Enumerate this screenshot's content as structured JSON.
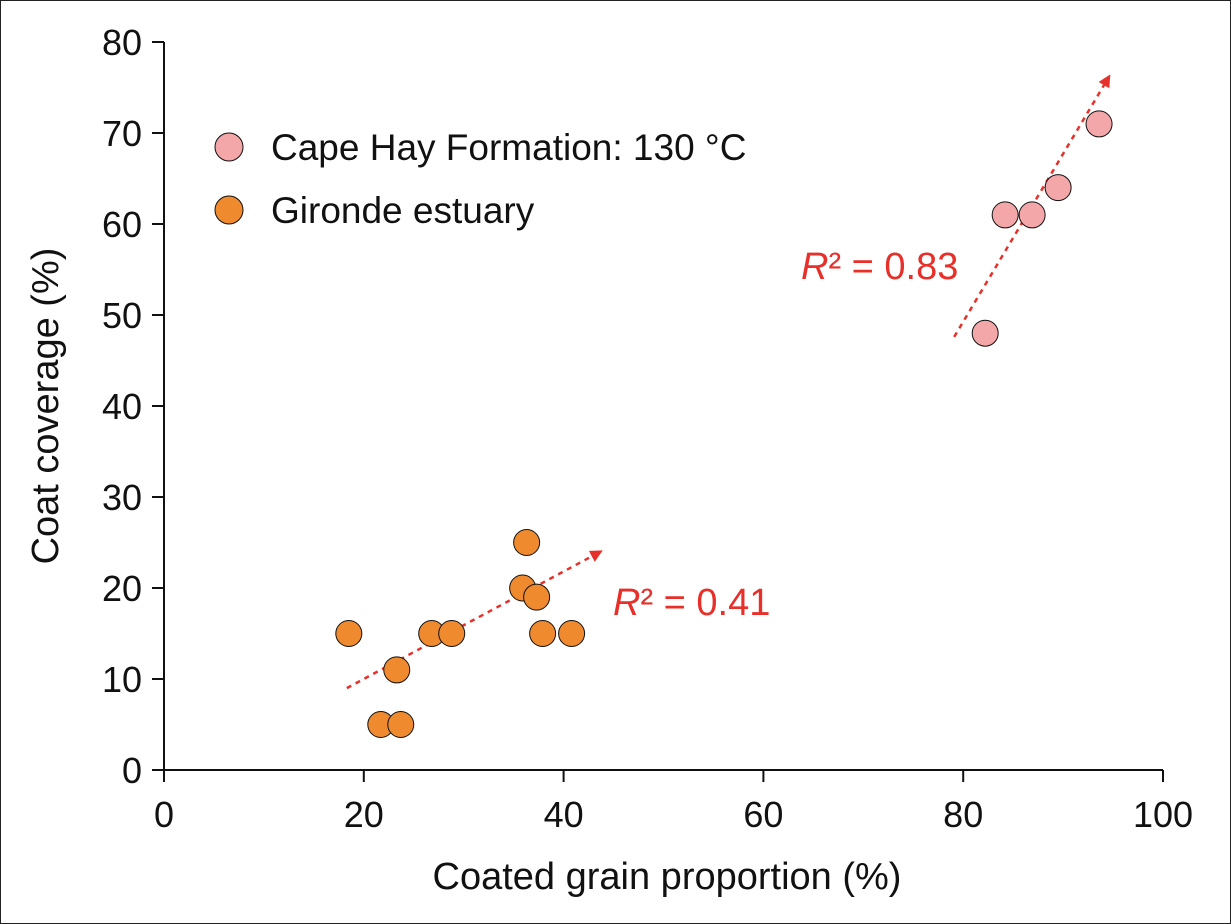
{
  "chart_data": {
    "type": "scatter",
    "title": "",
    "xlabel": "Coated grain proportion (%)",
    "ylabel": "Coat coverage (%)",
    "xlim": [
      0,
      100
    ],
    "ylim": [
      0,
      80
    ],
    "xticks": [
      0,
      20,
      40,
      60,
      80,
      100
    ],
    "yticks": [
      0,
      10,
      20,
      30,
      40,
      50,
      60,
      70,
      80
    ],
    "grid": false,
    "legend_position": "top-left",
    "series": [
      {
        "name": "Cape Hay Formation: 130 °C",
        "color": "#f4a7a9",
        "points": [
          [
            82.2,
            48
          ],
          [
            84.2,
            61
          ],
          [
            86.9,
            61
          ],
          [
            89.5,
            64
          ],
          [
            93.6,
            71
          ]
        ],
        "trend": {
          "from": [
            79.1,
            47.6
          ],
          "to": [
            94.6,
            76.2
          ],
          "label": "R² = 0.83",
          "r2_prefix": "R",
          "r2_rest": "² = 0.83"
        }
      },
      {
        "name": "Gironde estuary",
        "color": "#f08a2e",
        "points": [
          [
            18.5,
            15
          ],
          [
            21.7,
            5
          ],
          [
            23.7,
            5
          ],
          [
            23.3,
            11
          ],
          [
            26.8,
            15
          ],
          [
            28.8,
            15
          ],
          [
            36.3,
            25
          ],
          [
            35.9,
            20
          ],
          [
            37.3,
            19
          ],
          [
            37.9,
            15
          ],
          [
            40.8,
            15
          ]
        ],
        "trend": {
          "from": [
            18.3,
            9
          ],
          "to": [
            43.7,
            24
          ],
          "label": "R² = 0.41",
          "r2_prefix": "R",
          "r2_rest": "² = 0.41"
        }
      }
    ],
    "trend_color": "#e8302a"
  }
}
